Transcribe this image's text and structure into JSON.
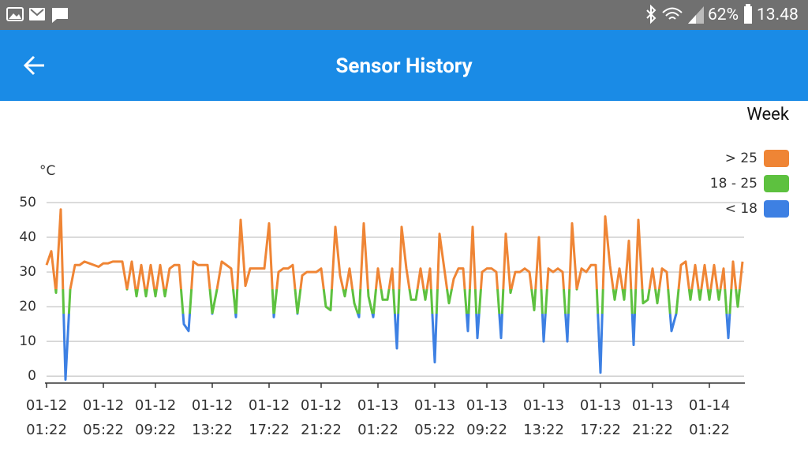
{
  "status_bar": {
    "battery": "62%",
    "time": "13.48"
  },
  "app_bar": {
    "title": "Sensor History"
  },
  "range_label": "Week",
  "chart_data": {
    "type": "line",
    "y_unit": "°C",
    "ylim": [
      -2,
      50
    ],
    "yticks": [
      0,
      10,
      20,
      30,
      40,
      50
    ],
    "grid": true,
    "legend_position": "top-right",
    "thresholds": [
      25,
      18
    ],
    "legend": [
      {
        "label": "> 25",
        "color": "#ef8535"
      },
      {
        "label": "18 - 25",
        "color": "#5dc13f"
      },
      {
        "label": "< 18",
        "color": "#3d80e3"
      }
    ],
    "categories": [
      "01-12\n01:22",
      null,
      null,
      null,
      null,
      null,
      null,
      null,
      null,
      null,
      null,
      null,
      "01-12\n05:22",
      null,
      null,
      null,
      null,
      null,
      null,
      null,
      null,
      null,
      null,
      "01-12\n09:22",
      null,
      null,
      null,
      null,
      null,
      null,
      null,
      null,
      null,
      null,
      null,
      "01-12\n13:22",
      null,
      null,
      null,
      null,
      null,
      null,
      null,
      null,
      null,
      null,
      null,
      "01-12\n17:22",
      null,
      null,
      null,
      null,
      null,
      null,
      null,
      null,
      null,
      null,
      "01-12\n21:22",
      null,
      null,
      null,
      null,
      null,
      null,
      null,
      null,
      null,
      null,
      null,
      "01-13\n01:22",
      null,
      null,
      null,
      null,
      null,
      null,
      null,
      null,
      null,
      null,
      null,
      "01-13\n05:22",
      null,
      null,
      null,
      null,
      null,
      null,
      null,
      null,
      null,
      null,
      "01-13\n09:22",
      null,
      null,
      null,
      null,
      null,
      null,
      null,
      null,
      null,
      null,
      null,
      "01-13\n13:22",
      null,
      null,
      null,
      null,
      null,
      null,
      null,
      null,
      null,
      null,
      null,
      "01-13\n17:22",
      null,
      null,
      null,
      null,
      null,
      null,
      null,
      null,
      null,
      null,
      "01-13\n21:22",
      null,
      null,
      null,
      null,
      null,
      null,
      null,
      null,
      null,
      null,
      null,
      "01-14\n01:22",
      null,
      null,
      null,
      null,
      null,
      null,
      null
    ],
    "values": [
      32,
      36,
      24,
      48,
      -1,
      25,
      32,
      32,
      33,
      32.5,
      32,
      31.5,
      32.5,
      32.5,
      33,
      33,
      33,
      25,
      33,
      23,
      32,
      23,
      32,
      23,
      32,
      23,
      31,
      32,
      32,
      15,
      13,
      33,
      32,
      32,
      32,
      18,
      25,
      33,
      32,
      31,
      17,
      45,
      26,
      31,
      31,
      31,
      31,
      44,
      17,
      30,
      31,
      31,
      32,
      18,
      29,
      30,
      30,
      30,
      31,
      20,
      19,
      43,
      29,
      23,
      31,
      21,
      17,
      44,
      23,
      17,
      31,
      22,
      22,
      31,
      8,
      43,
      31,
      22,
      22,
      31,
      22,
      31,
      4,
      41,
      31,
      21,
      28,
      31,
      31,
      13,
      43,
      11,
      30,
      31,
      31,
      30,
      11,
      41,
      24,
      30,
      30,
      31,
      30,
      19,
      40,
      10,
      31,
      30,
      31,
      30,
      10,
      44,
      25,
      31,
      30,
      32,
      32,
      1,
      46,
      32,
      22,
      31,
      22,
      39,
      9,
      45,
      21,
      22,
      31,
      21,
      31,
      30,
      13,
      18,
      32,
      33,
      22,
      32,
      22,
      32,
      22,
      32,
      22,
      31,
      11,
      33,
      20,
      33
    ]
  }
}
